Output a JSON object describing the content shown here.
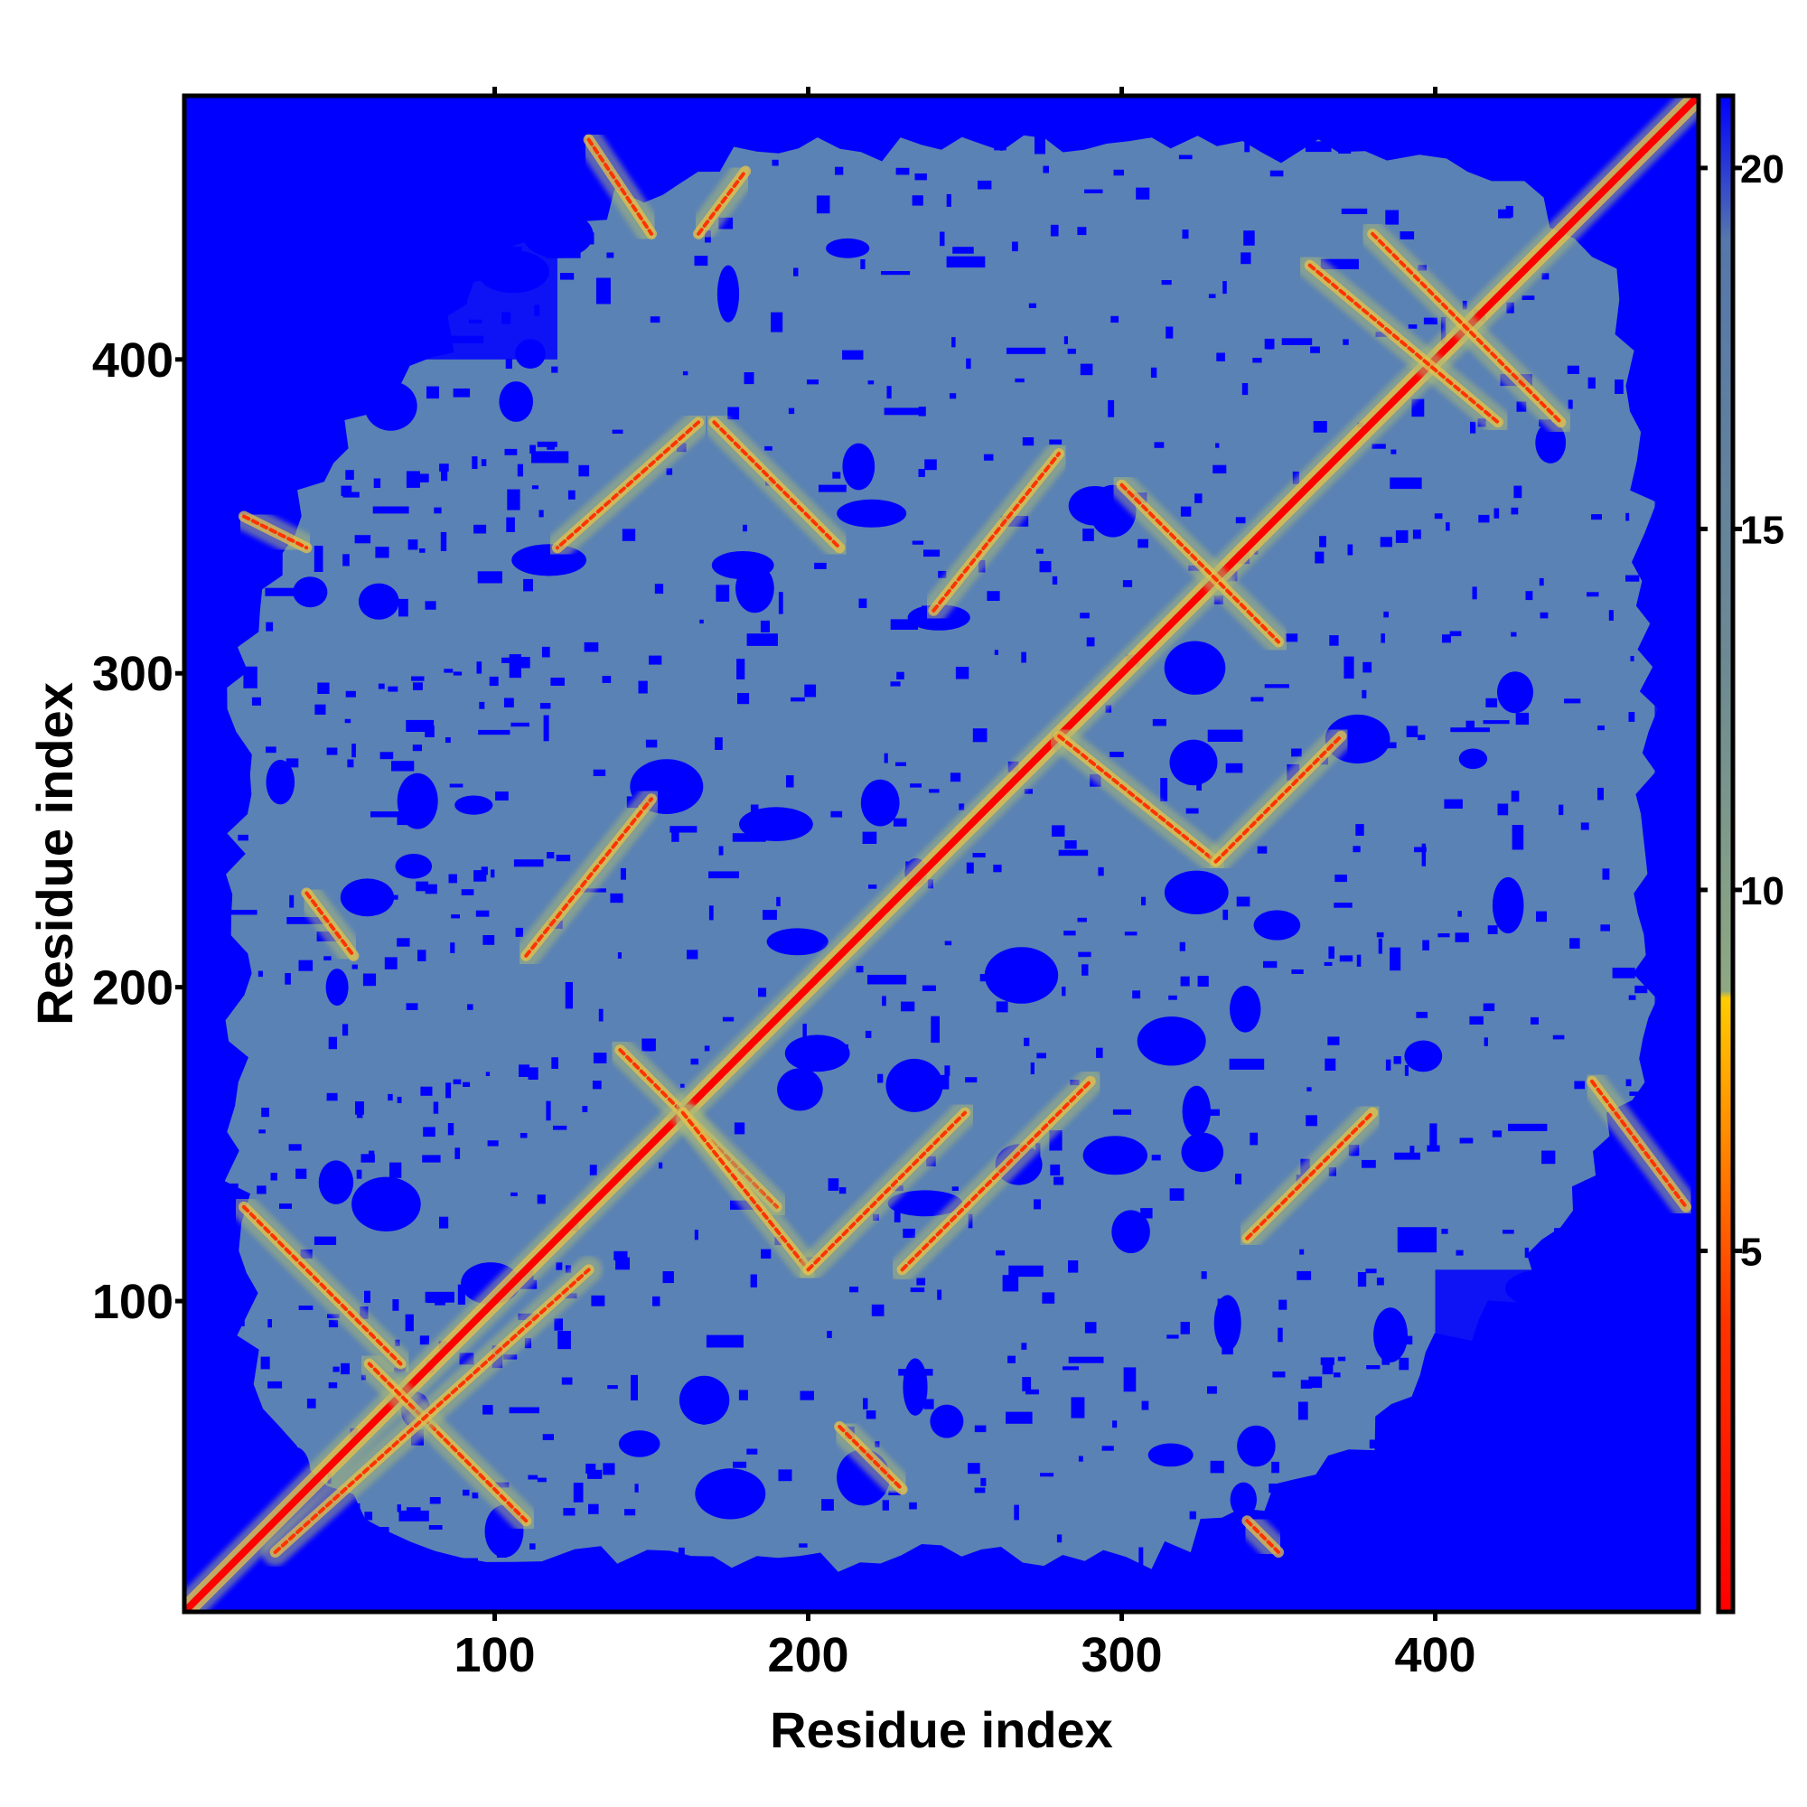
{
  "chart_data": {
    "type": "heatmap",
    "title": "",
    "xlabel": "Residue index",
    "ylabel": "Residue index",
    "xlim": [
      1,
      484
    ],
    "ylim": [
      1,
      484
    ],
    "x_ticks": [
      100,
      200,
      300,
      400
    ],
    "y_ticks": [
      100,
      200,
      300,
      400
    ],
    "colorbar": {
      "range": [
        0,
        21
      ],
      "ticks": [
        5,
        10,
        15,
        20
      ],
      "colors": [
        {
          "value": 0,
          "color": "#ff0000"
        },
        {
          "value": 4,
          "color": "#ff3300"
        },
        {
          "value": 7,
          "color": "#ff9900"
        },
        {
          "value": 8.5,
          "color": "#ffcc00"
        },
        {
          "value": 8.6,
          "color": "#8fa882"
        },
        {
          "value": 13,
          "color": "#6d8a92"
        },
        {
          "value": 19,
          "color": "#5577aa"
        },
        {
          "value": 21,
          "color": "#0000ff"
        }
      ]
    },
    "background_color": "#0000ff",
    "contact_region_color": "#5a82b4",
    "diagonal_color": "#ff0000",
    "contact_features": [
      {
        "type": "diagonal",
        "from": [
          1,
          1
        ],
        "to": [
          484,
          484
        ],
        "distance": 3.8
      },
      {
        "type": "anti-parallel",
        "from": [
          20,
          130
        ],
        "to": [
          70,
          80
        ],
        "distance": 6
      },
      {
        "type": "anti-parallel",
        "from": [
          110,
          30
        ],
        "to": [
          60,
          80
        ],
        "distance": 6
      },
      {
        "type": "parallel",
        "from": [
          30,
          20
        ],
        "to": [
          130,
          110
        ],
        "distance": 7
      },
      {
        "type": "anti-parallel",
        "from": [
          140,
          180
        ],
        "to": [
          190,
          130
        ],
        "distance": 6
      },
      {
        "type": "anti-parallel",
        "from": [
          160,
          160
        ],
        "to": [
          200,
          110
        ],
        "distance": 6
      },
      {
        "type": "parallel",
        "from": [
          110,
          210
        ],
        "to": [
          150,
          260
        ],
        "distance": 7
      },
      {
        "type": "anti-parallel",
        "from": [
          200,
          110
        ],
        "to": [
          250,
          160
        ],
        "distance": 6
      },
      {
        "type": "parallel",
        "from": [
          230,
          110
        ],
        "to": [
          290,
          170
        ],
        "distance": 7
      },
      {
        "type": "anti-parallel",
        "from": [
          165,
          380
        ],
        "to": [
          120,
          340
        ],
        "distance": 6
      },
      {
        "type": "anti-parallel",
        "from": [
          170,
          380
        ],
        "to": [
          210,
          340
        ],
        "distance": 6
      },
      {
        "type": "anti-parallel",
        "from": [
          240,
          320
        ],
        "to": [
          280,
          370
        ],
        "distance": 6
      },
      {
        "type": "anti-parallel",
        "from": [
          300,
          360
        ],
        "to": [
          350,
          310
        ],
        "distance": 6
      },
      {
        "type": "anti-parallel",
        "from": [
          280,
          280
        ],
        "to": [
          330,
          240
        ],
        "distance": 6
      },
      {
        "type": "anti-parallel",
        "from": [
          330,
          240
        ],
        "to": [
          370,
          280
        ],
        "distance": 6
      },
      {
        "type": "anti-parallel",
        "from": [
          340,
          120
        ],
        "to": [
          380,
          160
        ],
        "distance": 6
      },
      {
        "type": "anti-parallel",
        "from": [
          450,
          170
        ],
        "to": [
          480,
          130
        ],
        "distance": 6
      },
      {
        "type": "anti-parallel",
        "from": [
          380,
          440
        ],
        "to": [
          440,
          380
        ],
        "distance": 6
      },
      {
        "type": "anti-parallel",
        "from": [
          360,
          430
        ],
        "to": [
          420,
          380
        ],
        "distance": 6
      },
      {
        "type": "anti-parallel",
        "from": [
          130,
          470
        ],
        "to": [
          150,
          440
        ],
        "distance": 6
      },
      {
        "type": "anti-parallel",
        "from": [
          165,
          440
        ],
        "to": [
          180,
          460
        ],
        "distance": 6
      },
      {
        "type": "anti-parallel",
        "from": [
          20,
          350
        ],
        "to": [
          40,
          340
        ],
        "distance": 7
      },
      {
        "type": "anti-parallel",
        "from": [
          40,
          230
        ],
        "to": [
          55,
          210
        ],
        "distance": 7
      },
      {
        "type": "anti-parallel",
        "from": [
          210,
          60
        ],
        "to": [
          230,
          40
        ],
        "distance": 7
      },
      {
        "type": "anti-parallel",
        "from": [
          340,
          30
        ],
        "to": [
          350,
          20
        ],
        "distance": 7
      }
    ],
    "blue_regions": [
      {
        "corner": "top-left",
        "x": [
          1,
          120
        ],
        "y": [
          400,
          484
        ]
      },
      {
        "corner": "bottom-right",
        "x": [
          400,
          484
        ],
        "y": [
          1,
          110
        ]
      },
      {
        "edge": "right",
        "x": [
          470,
          484
        ],
        "y": [
          1,
          484
        ]
      }
    ]
  }
}
